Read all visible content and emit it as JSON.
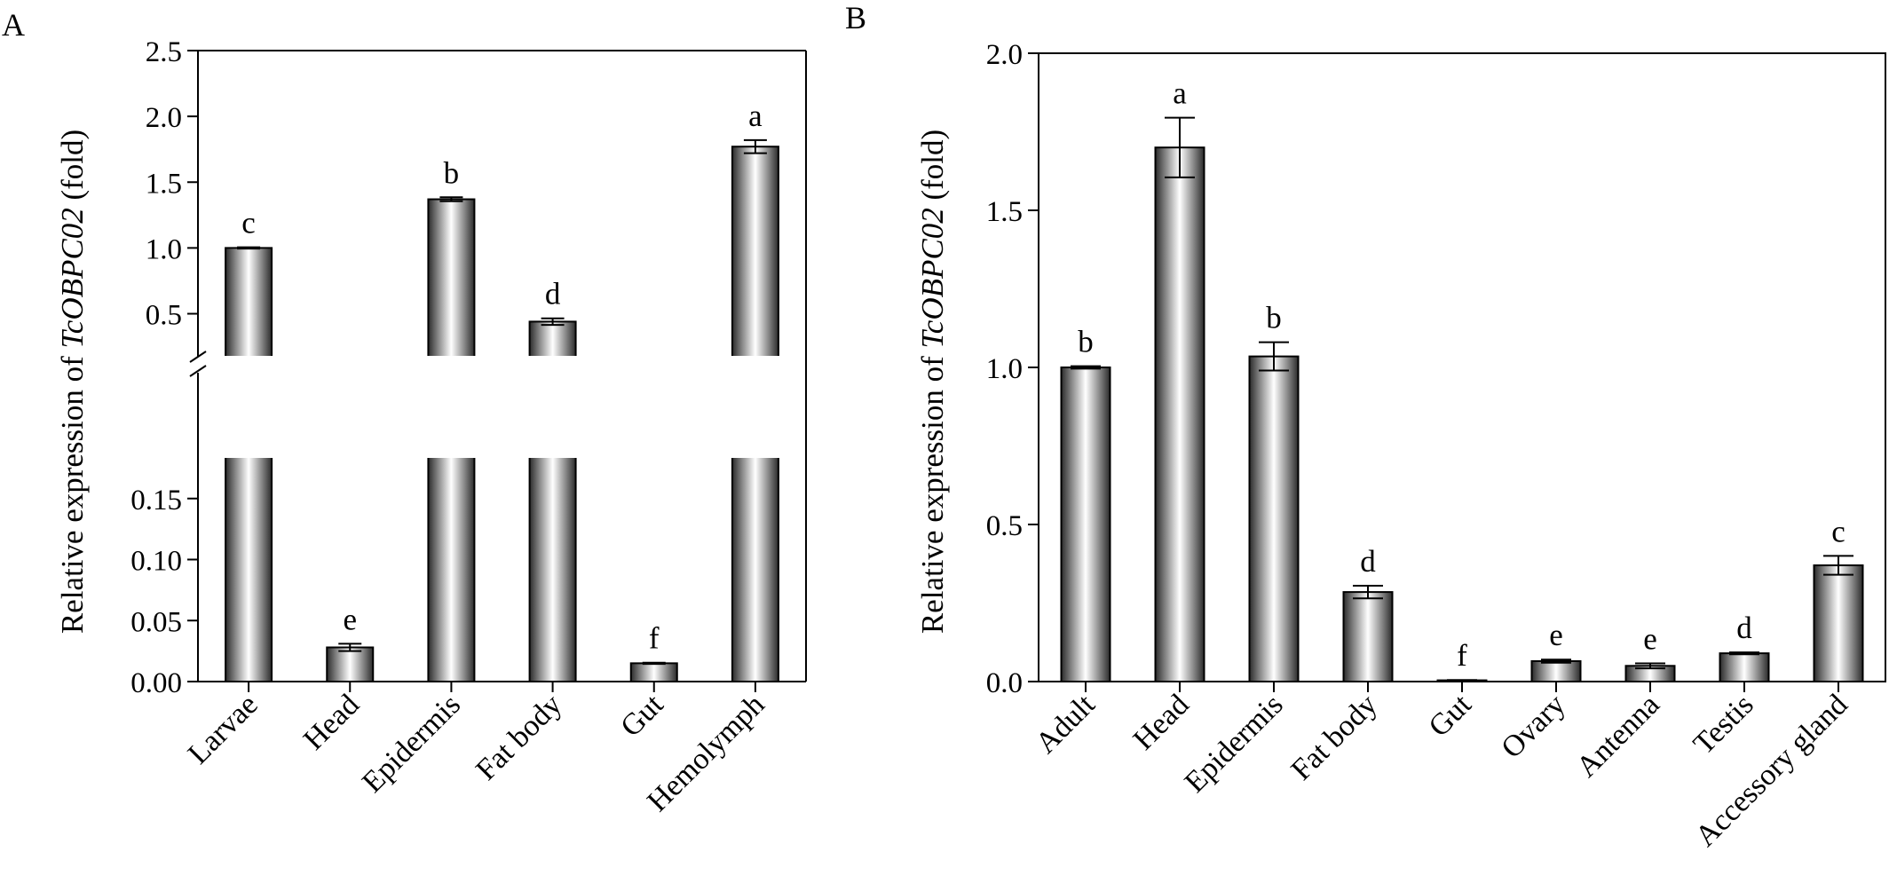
{
  "chart_data": [
    {
      "panel": "A",
      "type": "bar",
      "ylabel_prefix": "Relative expression of ",
      "ylabel_gene": "TcOBPC02",
      "ylabel_suffix": " (fold)",
      "y_axis_break": true,
      "ylim_lower": [
        0,
        0.2
      ],
      "ylim_upper": [
        0.2,
        2.5
      ],
      "yticks_lower": [
        "0.00",
        "0.05",
        "0.10",
        "0.15"
      ],
      "yticks_upper": [
        "0.5",
        "1.0",
        "1.5",
        "2.0",
        "2.5"
      ],
      "categories": [
        "Larvae",
        "Head",
        "Epidermis",
        "Fat body",
        "Gut",
        "Hemolymph"
      ],
      "values": [
        1.0,
        0.028,
        1.37,
        0.44,
        0.015,
        1.77
      ],
      "errors": [
        0.005,
        0.003,
        0.015,
        0.025,
        0.0005,
        0.05
      ],
      "significance": [
        "c",
        "e",
        "b",
        "d",
        "f",
        "a"
      ]
    },
    {
      "panel": "B",
      "type": "bar",
      "ylabel_prefix": "Relative expression of ",
      "ylabel_gene": "TcOBPC02",
      "ylabel_suffix": " (fold)",
      "ylim": [
        0,
        2.0
      ],
      "yticks": [
        "0.0",
        "0.5",
        "1.0",
        "1.5",
        "2.0"
      ],
      "categories": [
        "Adult",
        "Head",
        "Epidermis",
        "Fat body",
        "Gut",
        "Ovary",
        "Antenna",
        "Testis",
        "Accessory gland"
      ],
      "values": [
        1.0,
        1.7,
        1.035,
        0.285,
        0.004,
        0.065,
        0.05,
        0.09,
        0.37
      ],
      "errors": [
        0.004,
        0.095,
        0.045,
        0.02,
        0.001,
        0.005,
        0.008,
        0.003,
        0.03
      ],
      "significance": [
        "b",
        "a",
        "b",
        "d",
        "f",
        "e",
        "e",
        "d",
        "c"
      ]
    }
  ]
}
